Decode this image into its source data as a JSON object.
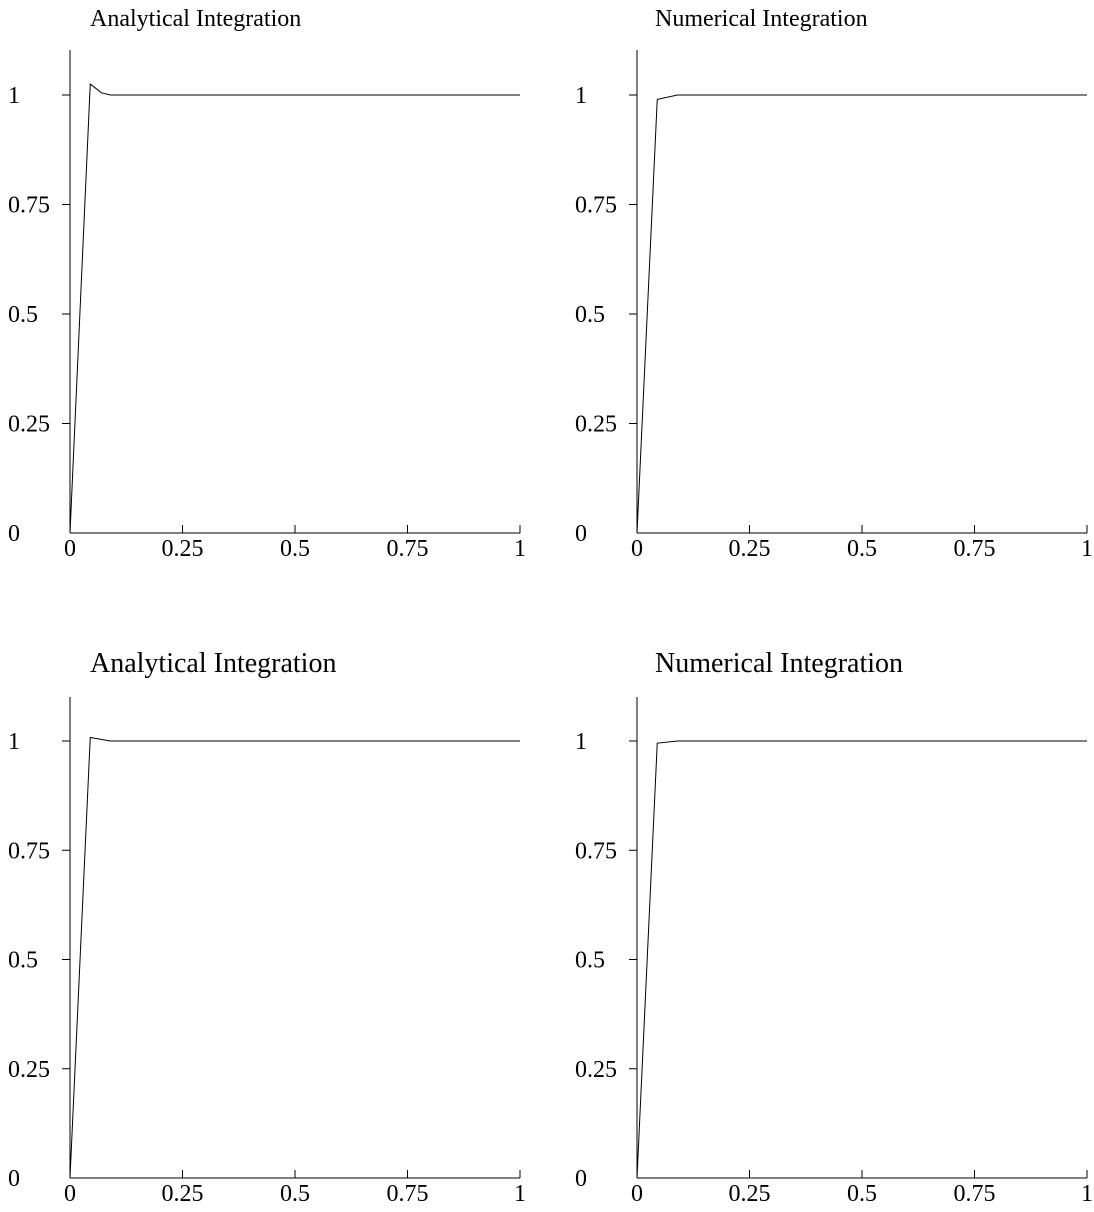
{
  "chart_data": [
    {
      "type": "line",
      "title": "Analytical Integration",
      "xlabel": "",
      "ylabel": "",
      "xlim": [
        0,
        1
      ],
      "ylim": [
        0,
        1.1
      ],
      "grid": false,
      "x_ticks": [
        "0",
        "0.25",
        "0.5",
        "0.75",
        "1"
      ],
      "y_ticks": [
        "0",
        "0.25",
        "0.5",
        "0.75",
        "1"
      ],
      "series": [
        {
          "x": [
            0,
            0.045,
            0.07,
            0.09,
            0.13,
            1.0
          ],
          "y": [
            0,
            1.025,
            1.005,
            1.0,
            1.0,
            1.0
          ]
        }
      ]
    },
    {
      "type": "line",
      "title": "Numerical Integration",
      "xlabel": "",
      "ylabel": "",
      "xlim": [
        0,
        1
      ],
      "ylim": [
        0,
        1.1
      ],
      "grid": false,
      "x_ticks": [
        "0",
        "0.25",
        "0.5",
        "0.75",
        "1"
      ],
      "y_ticks": [
        "0",
        "0.25",
        "0.5",
        "0.75",
        "1"
      ],
      "series": [
        {
          "x": [
            0,
            0.045,
            0.09,
            1.0
          ],
          "y": [
            0,
            0.99,
            1.0,
            1.0
          ]
        }
      ]
    },
    {
      "type": "line",
      "title": "Analytical Integration",
      "xlabel": "",
      "ylabel": "",
      "xlim": [
        0,
        1
      ],
      "ylim": [
        0,
        1.1
      ],
      "grid": false,
      "x_ticks": [
        "0",
        "0.25",
        "0.5",
        "0.75",
        "1"
      ],
      "y_ticks": [
        "0",
        "0.25",
        "0.5",
        "0.75",
        "1"
      ],
      "series": [
        {
          "x": [
            0,
            0.045,
            0.09,
            1.0
          ],
          "y": [
            0,
            1.008,
            1.0,
            1.0
          ]
        }
      ]
    },
    {
      "type": "line",
      "title": "Numerical Integration",
      "xlabel": "",
      "ylabel": "",
      "xlim": [
        0,
        1
      ],
      "ylim": [
        0,
        1.1
      ],
      "grid": false,
      "x_ticks": [
        "0",
        "0.25",
        "0.5",
        "0.75",
        "1"
      ],
      "y_ticks": [
        "0",
        "0.25",
        "0.5",
        "0.75",
        "1"
      ],
      "series": [
        {
          "x": [
            0,
            0.045,
            0.09,
            1.0
          ],
          "y": [
            0,
            0.995,
            1.0,
            1.0
          ]
        }
      ]
    }
  ]
}
